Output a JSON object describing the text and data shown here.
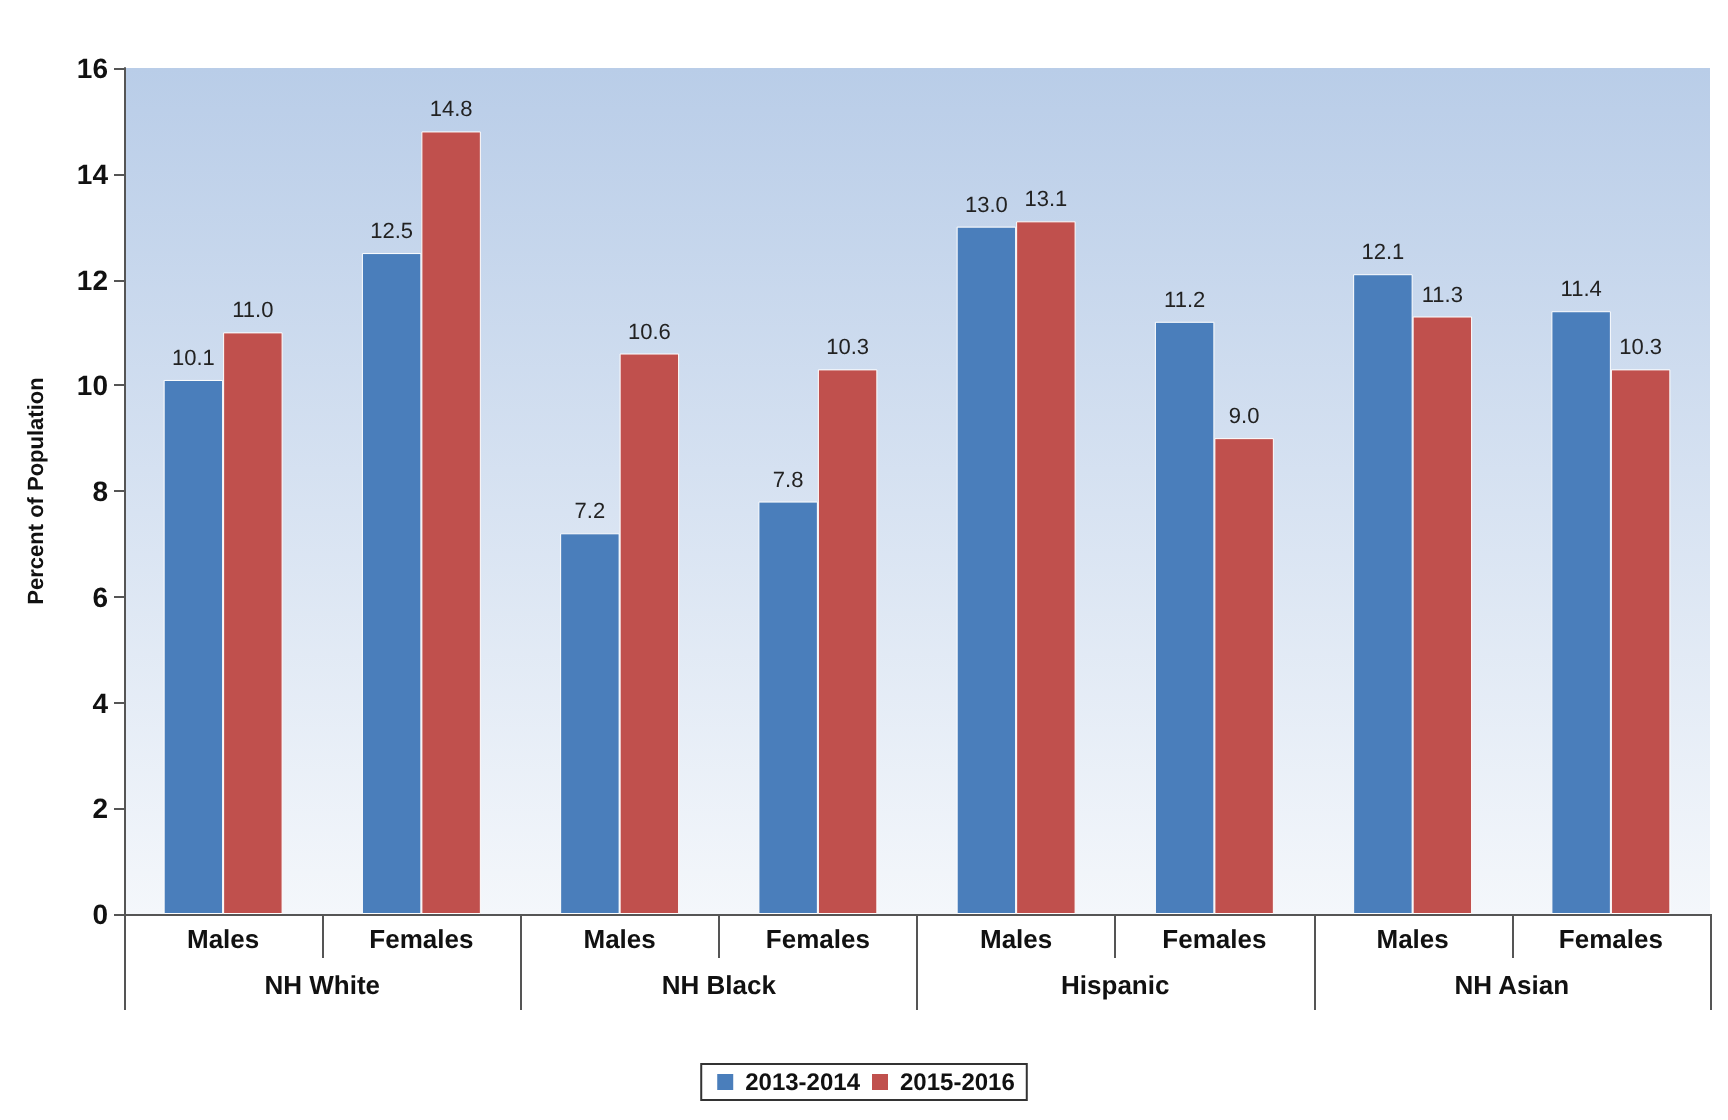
{
  "chart_data": {
    "type": "bar",
    "ylabel": "Percent of Population",
    "categories": [
      "Males",
      "Females",
      "Males",
      "Females",
      "Males",
      "Females",
      "Males",
      "Females"
    ],
    "annotations": [
      "NH White",
      "NH Black",
      "Hispanic",
      "NH Asian"
    ],
    "series": [
      {
        "name": "2013-2014",
        "color": "#4a7ebb",
        "values": [
          10.1,
          12.5,
          7.2,
          7.8,
          13.0,
          11.2,
          12.1,
          11.4
        ],
        "value_labels": [
          "10.1",
          "12.5",
          "7.2",
          "7.8",
          "13.0",
          "11.2",
          "12.1",
          "11.4"
        ]
      },
      {
        "name": "2015-2016",
        "color": "#c0504d",
        "values": [
          11.0,
          14.8,
          10.6,
          10.3,
          13.1,
          9.0,
          11.3,
          10.3
        ],
        "value_labels": [
          "11.0",
          "14.8",
          "10.6",
          "10.3",
          "13.1",
          "9.0",
          "11.3",
          "10.3"
        ]
      }
    ],
    "ylim": [
      0,
      16
    ],
    "yticks": [
      0,
      2,
      4,
      6,
      8,
      10,
      12,
      14,
      16
    ],
    "grid": false,
    "legend": "bottom"
  }
}
